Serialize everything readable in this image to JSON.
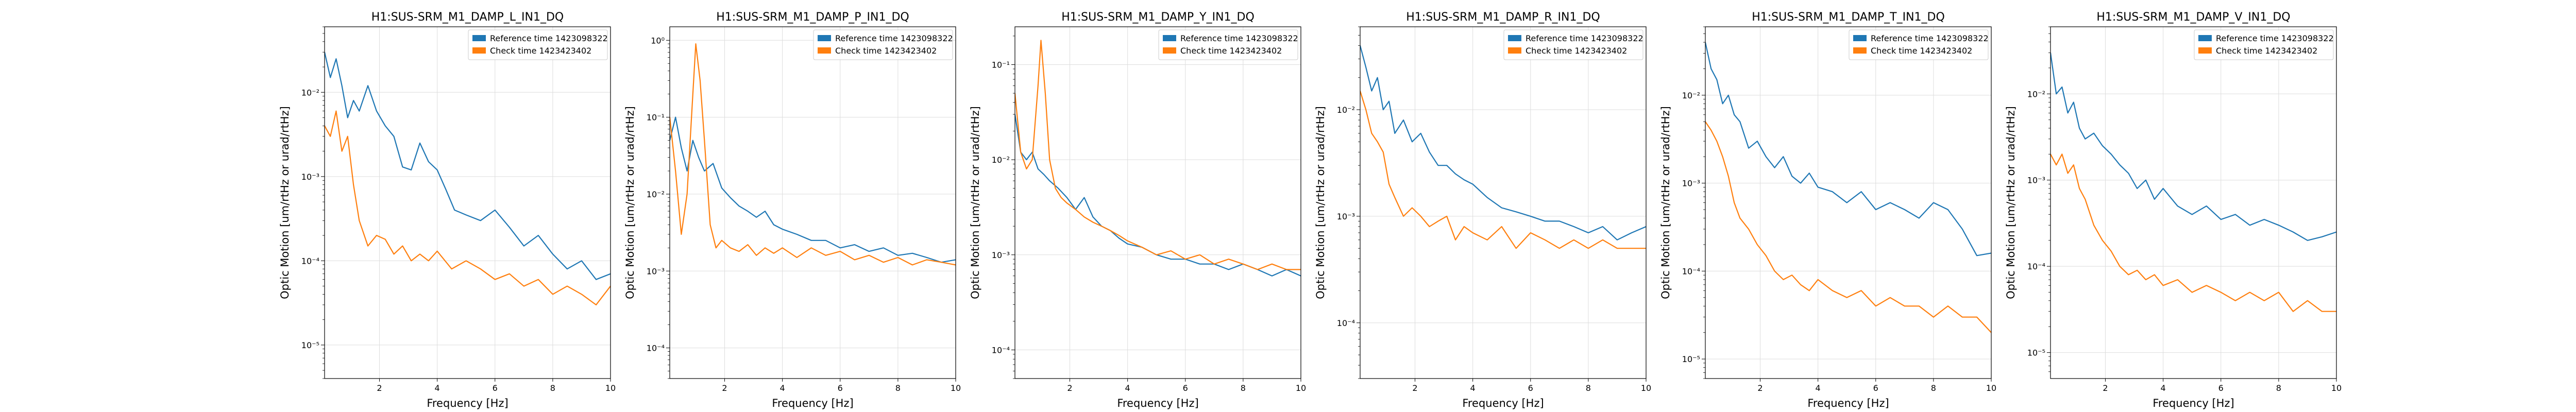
{
  "colors": {
    "reference": "#1f77b4",
    "check": "#ff7f0e",
    "grid": "#dddddd"
  },
  "chart_data": [
    {
      "type": "line",
      "title": "H1:SUS-SRM_M1_DAMP_L_IN1_DQ",
      "xlabel": "Frequency [Hz]",
      "ylabel": "Optic Motion [um/rtHz or urad/rtHz]",
      "xlim": [
        0.1,
        10
      ],
      "ylim": [
        4e-06,
        0.06
      ],
      "yscale": "log",
      "xticks": [
        2,
        4,
        6,
        8,
        10
      ],
      "yticks": [
        {
          "value": 1e-05,
          "label": "10⁻⁵"
        },
        {
          "value": 0.0001,
          "label": "10⁻⁴"
        },
        {
          "value": 0.001,
          "label": "10⁻³"
        },
        {
          "value": 0.01,
          "label": "10⁻²"
        }
      ],
      "grid": true,
      "legend_position": "top-right",
      "series": [
        {
          "name": "Reference time 1423098322",
          "x": [
            0.1,
            0.3,
            0.5,
            0.7,
            0.9,
            1.1,
            1.3,
            1.6,
            1.9,
            2.2,
            2.5,
            2.8,
            3.1,
            3.4,
            3.7,
            4.0,
            4.3,
            4.6,
            5.0,
            5.5,
            6.0,
            6.5,
            7.0,
            7.5,
            8.0,
            8.5,
            9.0,
            9.5,
            10.0
          ],
          "y": [
            0.03,
            0.015,
            0.025,
            0.012,
            0.005,
            0.008,
            0.006,
            0.012,
            0.006,
            0.004,
            0.003,
            0.0013,
            0.0012,
            0.0025,
            0.0015,
            0.0012,
            0.0007,
            0.0004,
            0.00035,
            0.0003,
            0.0004,
            0.00025,
            0.00015,
            0.0002,
            0.00012,
            8e-05,
            0.0001,
            6e-05,
            7e-05
          ]
        },
        {
          "name": "Check time 1423423402",
          "x": [
            0.1,
            0.3,
            0.5,
            0.7,
            0.9,
            1.1,
            1.3,
            1.6,
            1.9,
            2.2,
            2.5,
            2.8,
            3.1,
            3.4,
            3.7,
            4.0,
            4.5,
            5.0,
            5.5,
            6.0,
            6.5,
            7.0,
            7.5,
            8.0,
            8.5,
            9.0,
            9.5,
            10.0
          ],
          "y": [
            0.004,
            0.003,
            0.006,
            0.002,
            0.003,
            0.0008,
            0.0003,
            0.00015,
            0.0002,
            0.00018,
            0.00012,
            0.00015,
            0.0001,
            0.00012,
            0.0001,
            0.00013,
            8e-05,
            0.0001,
            8e-05,
            6e-05,
            7e-05,
            5e-05,
            6e-05,
            4e-05,
            5e-05,
            4e-05,
            3e-05,
            5e-05
          ]
        }
      ]
    },
    {
      "type": "line",
      "title": "H1:SUS-SRM_M1_DAMP_P_IN1_DQ",
      "xlabel": "Frequency [Hz]",
      "ylabel": "Optic Motion [um/rtHz or urad/rtHz]",
      "xlim": [
        0.1,
        10
      ],
      "ylim": [
        4e-05,
        1.5
      ],
      "yscale": "log",
      "xticks": [
        2,
        4,
        6,
        8,
        10
      ],
      "yticks": [
        {
          "value": 0.0001,
          "label": "10⁻⁴"
        },
        {
          "value": 0.001,
          "label": "10⁻³"
        },
        {
          "value": 0.01,
          "label": "10⁻²"
        },
        {
          "value": 0.1,
          "label": "10⁻¹"
        },
        {
          "value": 1,
          "label": "10⁰"
        }
      ],
      "grid": true,
      "legend_position": "top-right",
      "series": [
        {
          "name": "Reference time 1423098322",
          "x": [
            0.1,
            0.3,
            0.5,
            0.7,
            0.9,
            1.1,
            1.3,
            1.6,
            1.9,
            2.2,
            2.5,
            2.8,
            3.1,
            3.4,
            3.7,
            4.0,
            4.5,
            5.0,
            5.5,
            6.0,
            6.5,
            7.0,
            7.5,
            8.0,
            8.5,
            9.0,
            9.5,
            10.0
          ],
          "y": [
            0.05,
            0.1,
            0.04,
            0.02,
            0.05,
            0.03,
            0.02,
            0.025,
            0.012,
            0.009,
            0.007,
            0.006,
            0.005,
            0.006,
            0.004,
            0.0035,
            0.003,
            0.0025,
            0.0025,
            0.002,
            0.0022,
            0.0018,
            0.002,
            0.0016,
            0.0017,
            0.0015,
            0.0013,
            0.0014
          ]
        },
        {
          "name": "Check time 1423423402",
          "x": [
            0.1,
            0.3,
            0.5,
            0.7,
            0.9,
            1.0,
            1.15,
            1.3,
            1.5,
            1.7,
            1.9,
            2.2,
            2.5,
            2.8,
            3.1,
            3.4,
            3.7,
            4.0,
            4.5,
            5.0,
            5.5,
            6.0,
            6.5,
            7.0,
            7.5,
            8.0,
            8.5,
            9.0,
            9.5,
            10.0
          ],
          "y": [
            0.1,
            0.02,
            0.003,
            0.01,
            0.2,
            0.9,
            0.3,
            0.05,
            0.004,
            0.002,
            0.0025,
            0.002,
            0.0018,
            0.0022,
            0.0016,
            0.002,
            0.0017,
            0.002,
            0.0015,
            0.002,
            0.0016,
            0.0018,
            0.0014,
            0.0016,
            0.0013,
            0.0015,
            0.0012,
            0.0014,
            0.0013,
            0.0012
          ]
        }
      ]
    },
    {
      "type": "line",
      "title": "H1:SUS-SRM_M1_DAMP_Y_IN1_DQ",
      "xlabel": "Frequency [Hz]",
      "ylabel": "Optic Motion [um/rtHz or urad/rtHz]",
      "xlim": [
        0.1,
        10
      ],
      "ylim": [
        5e-05,
        0.25
      ],
      "yscale": "log",
      "xticks": [
        2,
        4,
        6,
        8,
        10
      ],
      "yticks": [
        {
          "value": 0.0001,
          "label": "10⁻⁴"
        },
        {
          "value": 0.001,
          "label": "10⁻³"
        },
        {
          "value": 0.01,
          "label": "10⁻²"
        },
        {
          "value": 0.1,
          "label": "10⁻¹"
        }
      ],
      "grid": true,
      "legend_position": "top-right",
      "series": [
        {
          "name": "Reference time 1423098322",
          "x": [
            0.1,
            0.3,
            0.5,
            0.7,
            0.9,
            1.1,
            1.3,
            1.6,
            1.9,
            2.2,
            2.5,
            2.8,
            3.1,
            3.4,
            3.7,
            4.0,
            4.5,
            5.0,
            5.5,
            6.0,
            6.5,
            7.0,
            7.5,
            8.0,
            8.5,
            9.0,
            9.5,
            10.0
          ],
          "y": [
            0.03,
            0.012,
            0.01,
            0.012,
            0.008,
            0.007,
            0.006,
            0.005,
            0.004,
            0.003,
            0.004,
            0.0025,
            0.002,
            0.0018,
            0.0015,
            0.0013,
            0.0012,
            0.001,
            0.0009,
            0.0009,
            0.0008,
            0.0008,
            0.0007,
            0.0008,
            0.0007,
            0.0006,
            0.0007,
            0.0006
          ]
        },
        {
          "name": "Check time 1423423402",
          "x": [
            0.1,
            0.3,
            0.5,
            0.7,
            0.9,
            1.0,
            1.15,
            1.3,
            1.5,
            1.7,
            1.9,
            2.2,
            2.5,
            2.8,
            3.1,
            3.4,
            3.7,
            4.0,
            4.5,
            5.0,
            5.5,
            6.0,
            6.5,
            7.0,
            7.5,
            8.0,
            8.5,
            9.0,
            9.5,
            10.0
          ],
          "y": [
            0.05,
            0.012,
            0.008,
            0.01,
            0.06,
            0.18,
            0.05,
            0.01,
            0.005,
            0.004,
            0.0035,
            0.003,
            0.0025,
            0.0022,
            0.002,
            0.0018,
            0.0016,
            0.0014,
            0.0012,
            0.001,
            0.0011,
            0.0009,
            0.001,
            0.0008,
            0.0009,
            0.0008,
            0.0007,
            0.0008,
            0.0007,
            0.0007
          ]
        }
      ]
    },
    {
      "type": "line",
      "title": "H1:SUS-SRM_M1_DAMP_R_IN1_DQ",
      "xlabel": "Frequency [Hz]",
      "ylabel": "Optic Motion [um/rtHz or urad/rtHz]",
      "xlim": [
        0.1,
        10
      ],
      "ylim": [
        3e-05,
        0.06
      ],
      "yscale": "log",
      "xticks": [
        2,
        4,
        6,
        8,
        10
      ],
      "yticks": [
        {
          "value": 0.0001,
          "label": "10⁻⁴"
        },
        {
          "value": 0.001,
          "label": "10⁻³"
        },
        {
          "value": 0.01,
          "label": "10⁻²"
        }
      ],
      "grid": true,
      "legend_position": "top-right",
      "series": [
        {
          "name": "Reference time 1423098322",
          "x": [
            0.1,
            0.3,
            0.5,
            0.7,
            0.9,
            1.1,
            1.3,
            1.6,
            1.9,
            2.2,
            2.5,
            2.8,
            3.1,
            3.4,
            3.7,
            4.0,
            4.5,
            5.0,
            5.5,
            6.0,
            6.5,
            7.0,
            7.5,
            8.0,
            8.5,
            9.0,
            9.5,
            10.0
          ],
          "y": [
            0.04,
            0.025,
            0.015,
            0.02,
            0.01,
            0.012,
            0.006,
            0.008,
            0.005,
            0.006,
            0.004,
            0.003,
            0.003,
            0.0025,
            0.0022,
            0.002,
            0.0015,
            0.0012,
            0.0011,
            0.001,
            0.0009,
            0.0009,
            0.0008,
            0.0007,
            0.0008,
            0.0006,
            0.0007,
            0.0008
          ]
        },
        {
          "name": "Check time 1423423402",
          "x": [
            0.1,
            0.3,
            0.5,
            0.7,
            0.9,
            1.1,
            1.3,
            1.6,
            1.9,
            2.2,
            2.5,
            2.8,
            3.1,
            3.4,
            3.7,
            4.0,
            4.5,
            5.0,
            5.5,
            6.0,
            6.5,
            7.0,
            7.5,
            8.0,
            8.5,
            9.0,
            9.5,
            10.0
          ],
          "y": [
            0.015,
            0.01,
            0.006,
            0.005,
            0.004,
            0.002,
            0.0015,
            0.001,
            0.0012,
            0.001,
            0.0008,
            0.0009,
            0.001,
            0.0006,
            0.0008,
            0.0007,
            0.0006,
            0.0008,
            0.0005,
            0.0007,
            0.0006,
            0.0005,
            0.0006,
            0.0005,
            0.0006,
            0.0005,
            0.0005,
            0.0005
          ]
        }
      ]
    },
    {
      "type": "line",
      "title": "H1:SUS-SRM_M1_DAMP_T_IN1_DQ",
      "xlabel": "Frequency [Hz]",
      "ylabel": "Optic Motion [um/rtHz or urad/rtHz]",
      "xlim": [
        0.1,
        10
      ],
      "ylim": [
        6e-06,
        0.06
      ],
      "yscale": "log",
      "xticks": [
        2,
        4,
        6,
        8,
        10
      ],
      "yticks": [
        {
          "value": 1e-05,
          "label": "10⁻⁵"
        },
        {
          "value": 0.0001,
          "label": "10⁻⁴"
        },
        {
          "value": 0.001,
          "label": "10⁻³"
        },
        {
          "value": 0.01,
          "label": "10⁻²"
        }
      ],
      "grid": true,
      "legend_position": "top-right",
      "series": [
        {
          "name": "Reference time 1423098322",
          "x": [
            0.1,
            0.3,
            0.5,
            0.7,
            0.9,
            1.1,
            1.3,
            1.6,
            1.9,
            2.2,
            2.5,
            2.8,
            3.1,
            3.4,
            3.7,
            4.0,
            4.5,
            5.0,
            5.5,
            6.0,
            6.5,
            7.0,
            7.5,
            8.0,
            8.5,
            9.0,
            9.5,
            10.0
          ],
          "y": [
            0.04,
            0.02,
            0.015,
            0.008,
            0.01,
            0.006,
            0.005,
            0.0025,
            0.003,
            0.002,
            0.0015,
            0.002,
            0.0012,
            0.001,
            0.0013,
            0.0009,
            0.0008,
            0.0006,
            0.0008,
            0.0005,
            0.0006,
            0.0005,
            0.0004,
            0.0006,
            0.0005,
            0.0003,
            0.00015,
            0.00016
          ]
        },
        {
          "name": "Check time 1423423402",
          "x": [
            0.1,
            0.3,
            0.5,
            0.7,
            0.9,
            1.1,
            1.3,
            1.6,
            1.9,
            2.2,
            2.5,
            2.8,
            3.1,
            3.4,
            3.7,
            4.0,
            4.5,
            5.0,
            5.5,
            6.0,
            6.5,
            7.0,
            7.5,
            8.0,
            8.5,
            9.0,
            9.5,
            10.0
          ],
          "y": [
            0.005,
            0.004,
            0.003,
            0.002,
            0.0012,
            0.0006,
            0.0004,
            0.0003,
            0.0002,
            0.00015,
            0.0001,
            8e-05,
            9e-05,
            7e-05,
            6e-05,
            8e-05,
            6e-05,
            5e-05,
            6e-05,
            4e-05,
            5e-05,
            4e-05,
            4e-05,
            3e-05,
            4e-05,
            3e-05,
            3e-05,
            2e-05
          ]
        }
      ]
    },
    {
      "type": "line",
      "title": "H1:SUS-SRM_M1_DAMP_V_IN1_DQ",
      "xlabel": "Frequency [Hz]",
      "ylabel": "Optic Motion [um/rtHz or urad/rtHz]",
      "xlim": [
        0.1,
        10
      ],
      "ylim": [
        5e-06,
        0.06
      ],
      "yscale": "log",
      "xticks": [
        2,
        4,
        6,
        8,
        10
      ],
      "yticks": [
        {
          "value": 1e-05,
          "label": "10⁻⁵"
        },
        {
          "value": 0.0001,
          "label": "10⁻⁴"
        },
        {
          "value": 0.001,
          "label": "10⁻³"
        },
        {
          "value": 0.01,
          "label": "10⁻²"
        }
      ],
      "grid": true,
      "legend_position": "top-right",
      "series": [
        {
          "name": "Reference time 1423098322",
          "x": [
            0.1,
            0.3,
            0.5,
            0.7,
            0.9,
            1.1,
            1.3,
            1.6,
            1.9,
            2.2,
            2.5,
            2.8,
            3.1,
            3.4,
            3.7,
            4.0,
            4.5,
            5.0,
            5.5,
            6.0,
            6.5,
            7.0,
            7.5,
            8.0,
            8.5,
            9.0,
            9.5,
            10.0
          ],
          "y": [
            0.03,
            0.01,
            0.012,
            0.006,
            0.008,
            0.004,
            0.003,
            0.0035,
            0.0025,
            0.002,
            0.0015,
            0.0012,
            0.0008,
            0.001,
            0.0006,
            0.0008,
            0.0005,
            0.0004,
            0.0005,
            0.00035,
            0.0004,
            0.0003,
            0.00035,
            0.0003,
            0.00025,
            0.0002,
            0.00022,
            0.00025
          ]
        },
        {
          "name": "Check time 1423423402",
          "x": [
            0.1,
            0.3,
            0.5,
            0.7,
            0.9,
            1.1,
            1.3,
            1.6,
            1.9,
            2.2,
            2.5,
            2.8,
            3.1,
            3.4,
            3.7,
            4.0,
            4.5,
            5.0,
            5.5,
            6.0,
            6.5,
            7.0,
            7.5,
            8.0,
            8.5,
            9.0,
            9.5,
            10.0
          ],
          "y": [
            0.002,
            0.0015,
            0.002,
            0.0012,
            0.0015,
            0.0008,
            0.0006,
            0.0003,
            0.0002,
            0.00015,
            0.0001,
            8e-05,
            9e-05,
            7e-05,
            8e-05,
            6e-05,
            7e-05,
            5e-05,
            6e-05,
            5e-05,
            4e-05,
            5e-05,
            4e-05,
            5e-05,
            3e-05,
            4e-05,
            3e-05,
            3e-05
          ]
        }
      ]
    }
  ]
}
